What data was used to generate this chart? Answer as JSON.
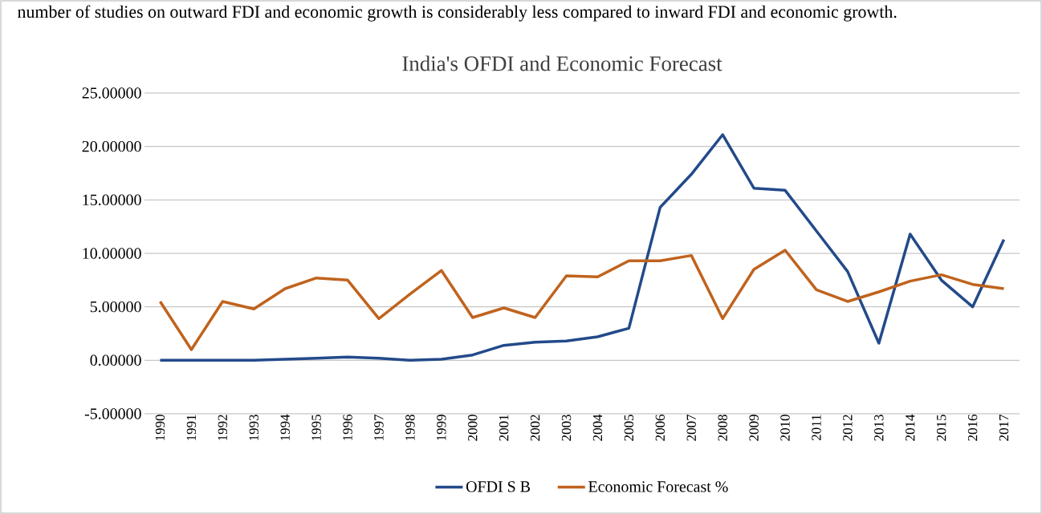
{
  "chart_data": {
    "type": "line",
    "title": "India's OFDI and Economic Forecast",
    "annotations": [
      "number of studies on outward FDI and economic growth is considerably less compared to inward FDI and economic growth."
    ],
    "categories": [
      "1990",
      "1991",
      "1992",
      "1993",
      "1994",
      "1995",
      "1996",
      "1997",
      "1998",
      "1999",
      "2000",
      "2001",
      "2002",
      "2003",
      "2004",
      "2005",
      "2006",
      "2007",
      "2008",
      "2009",
      "2010",
      "2011",
      "2012",
      "2013",
      "2014",
      "2015",
      "2016",
      "2017"
    ],
    "series": [
      {
        "name": "OFDI S B",
        "color": "#234a8a",
        "values": [
          0,
          0,
          0,
          0,
          0.1,
          0.2,
          0.3,
          0.2,
          0,
          0.1,
          0.5,
          1.4,
          1.7,
          1.8,
          2.2,
          3.0,
          14.3,
          17.4,
          21.1,
          16.1,
          15.9,
          12.1,
          8.3,
          1.6,
          11.8,
          7.5,
          5.0,
          11.3
        ]
      },
      {
        "name": "Economic Forecast %",
        "color": "#c0631e",
        "values": [
          5.5,
          1.0,
          5.5,
          4.8,
          6.7,
          7.7,
          7.5,
          3.9,
          6.2,
          8.4,
          4.0,
          4.9,
          4.0,
          7.9,
          7.8,
          9.3,
          9.3,
          9.8,
          3.9,
          8.5,
          10.3,
          6.6,
          5.5,
          6.4,
          7.4,
          8.0,
          7.1,
          6.7
        ]
      }
    ],
    "ylim": [
      -5,
      25
    ],
    "yticks": [
      {
        "value": -5,
        "label": "-5.00000"
      },
      {
        "value": 0,
        "label": "0.00000"
      },
      {
        "value": 5,
        "label": "5.00000"
      },
      {
        "value": 10,
        "label": "10.00000"
      },
      {
        "value": 15,
        "label": "15.00000"
      },
      {
        "value": 20,
        "label": "20.00000"
      },
      {
        "value": 25,
        "label": "25.00000"
      }
    ],
    "grid": "y",
    "legend": "bottom",
    "marker": "none",
    "line_style": "solid"
  }
}
